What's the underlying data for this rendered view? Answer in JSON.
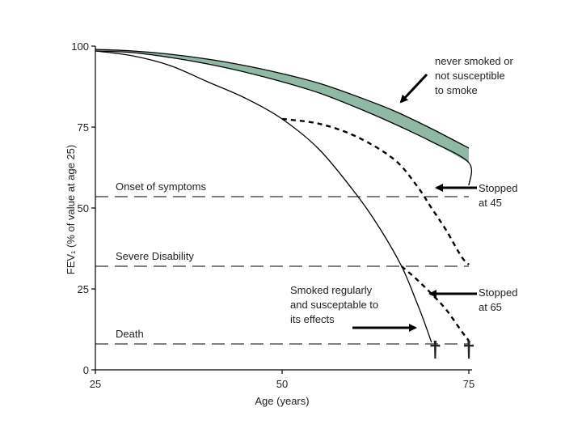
{
  "chart_data": {
    "type": "line",
    "title": "",
    "xlabel": "Age (years)",
    "ylabel": "FEV₁ (% of value at age 25)",
    "xlim": [
      25,
      75
    ],
    "ylim": [
      0,
      100
    ],
    "x_ticks": [
      25,
      50,
      75
    ],
    "y_ticks": [
      0,
      25,
      50,
      75,
      100
    ],
    "grid": false,
    "thresholds": [
      {
        "label": "Onset of symptoms",
        "y": 53.5
      },
      {
        "label": "Severe Disability",
        "y": 32
      },
      {
        "label": "Death",
        "y": 8
      }
    ],
    "series": [
      {
        "style": "solid",
        "points": [
          [
            25,
            99
          ],
          [
            30,
            98.5
          ],
          [
            35,
            97.5
          ],
          [
            40,
            96
          ],
          [
            45,
            94
          ],
          [
            50,
            91.5
          ],
          [
            55,
            88.5
          ],
          [
            60,
            84.5
          ],
          [
            65,
            80
          ],
          [
            70,
            74.5
          ],
          [
            75,
            68.5
          ]
        ]
      },
      {
        "style": "solid",
        "points": [
          [
            25,
            98.5
          ],
          [
            30,
            98
          ],
          [
            35,
            96.5
          ],
          [
            40,
            94.5
          ],
          [
            45,
            92
          ],
          [
            50,
            89
          ],
          [
            55,
            85.5
          ],
          [
            60,
            81
          ],
          [
            65,
            76
          ],
          [
            70,
            70.5
          ],
          [
            75,
            64
          ],
          [
            75,
            57
          ]
        ]
      },
      {
        "style": "solid",
        "points": [
          [
            25,
            98.5
          ],
          [
            30,
            97
          ],
          [
            35,
            94
          ],
          [
            40,
            89
          ],
          [
            45,
            84
          ],
          [
            50,
            77.5
          ],
          [
            55,
            68
          ],
          [
            60,
            54
          ],
          [
            63,
            44
          ],
          [
            66,
            32
          ],
          [
            68,
            21
          ],
          [
            69,
            15
          ],
          [
            70,
            8.5
          ]
        ]
      },
      {
        "style": "dashed",
        "points": [
          [
            50,
            77.5
          ],
          [
            55,
            76
          ],
          [
            60,
            72
          ],
          [
            65,
            65
          ],
          [
            68,
            57
          ],
          [
            70,
            50
          ],
          [
            72,
            43
          ],
          [
            74,
            35
          ],
          [
            75,
            32.5
          ]
        ]
      },
      {
        "style": "dashed",
        "points": [
          [
            66,
            32
          ],
          [
            68,
            28
          ],
          [
            70,
            23.5
          ],
          [
            72,
            18.5
          ],
          [
            74,
            12
          ],
          [
            75,
            9
          ]
        ]
      }
    ],
    "shaded_band": {
      "fill": "#8fb9a5",
      "between": "never smoked or not susceptible to smoke"
    },
    "annotations": [
      {
        "lines": [
          "never smoked or",
          "not susceptible",
          "to smoke"
        ]
      },
      {
        "lines": [
          "Stopped",
          "at 45"
        ]
      },
      {
        "lines": [
          "Stopped",
          "at 65"
        ]
      },
      {
        "lines": [
          "Smoked regularly",
          "and susceptable to",
          "its effects"
        ]
      }
    ],
    "death_marker": "†",
    "colors": {
      "line": "#000000",
      "band": "#8fb9a5",
      "axis": "#000000"
    }
  }
}
